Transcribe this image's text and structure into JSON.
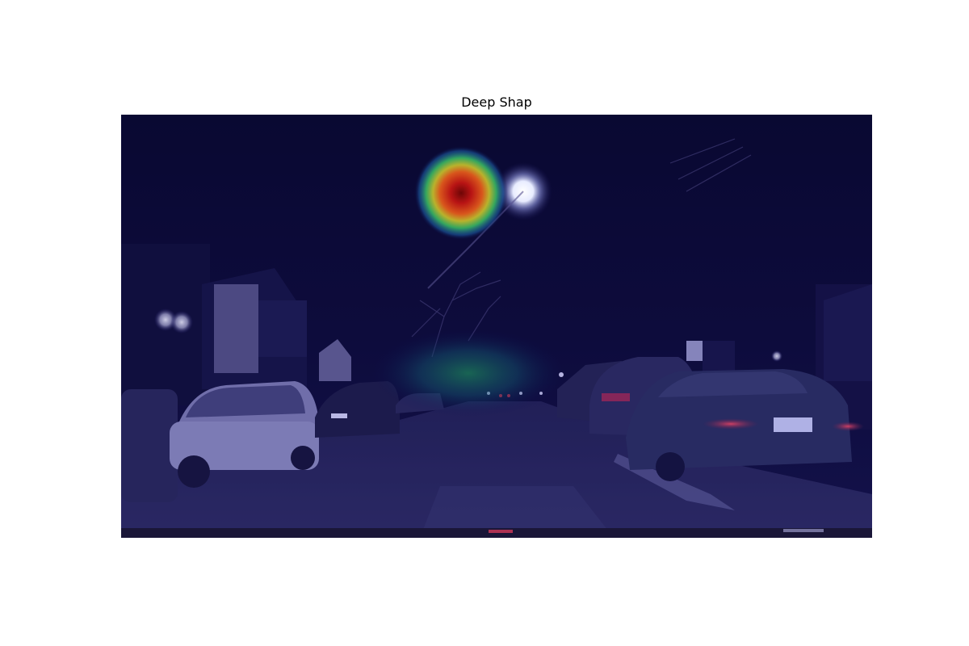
{
  "figure": {
    "title": "Deep Shap"
  },
  "image": {
    "subject": "night-street-dashcam-with-saliency-heatmap",
    "overlay_colormap": "jet",
    "colors": {
      "sky": "#06051a",
      "road": "#2b2a52",
      "blue_overlay": "#1b1880",
      "hotspot_core": "#8b0a0a",
      "hotspot_ring_red": "#d8341c",
      "hotspot_ring_yellow": "#c9c22a",
      "hotspot_ring_green": "#2fa063",
      "streetlight": "#f4f6ff",
      "tail_light": "#e02a3a"
    }
  }
}
